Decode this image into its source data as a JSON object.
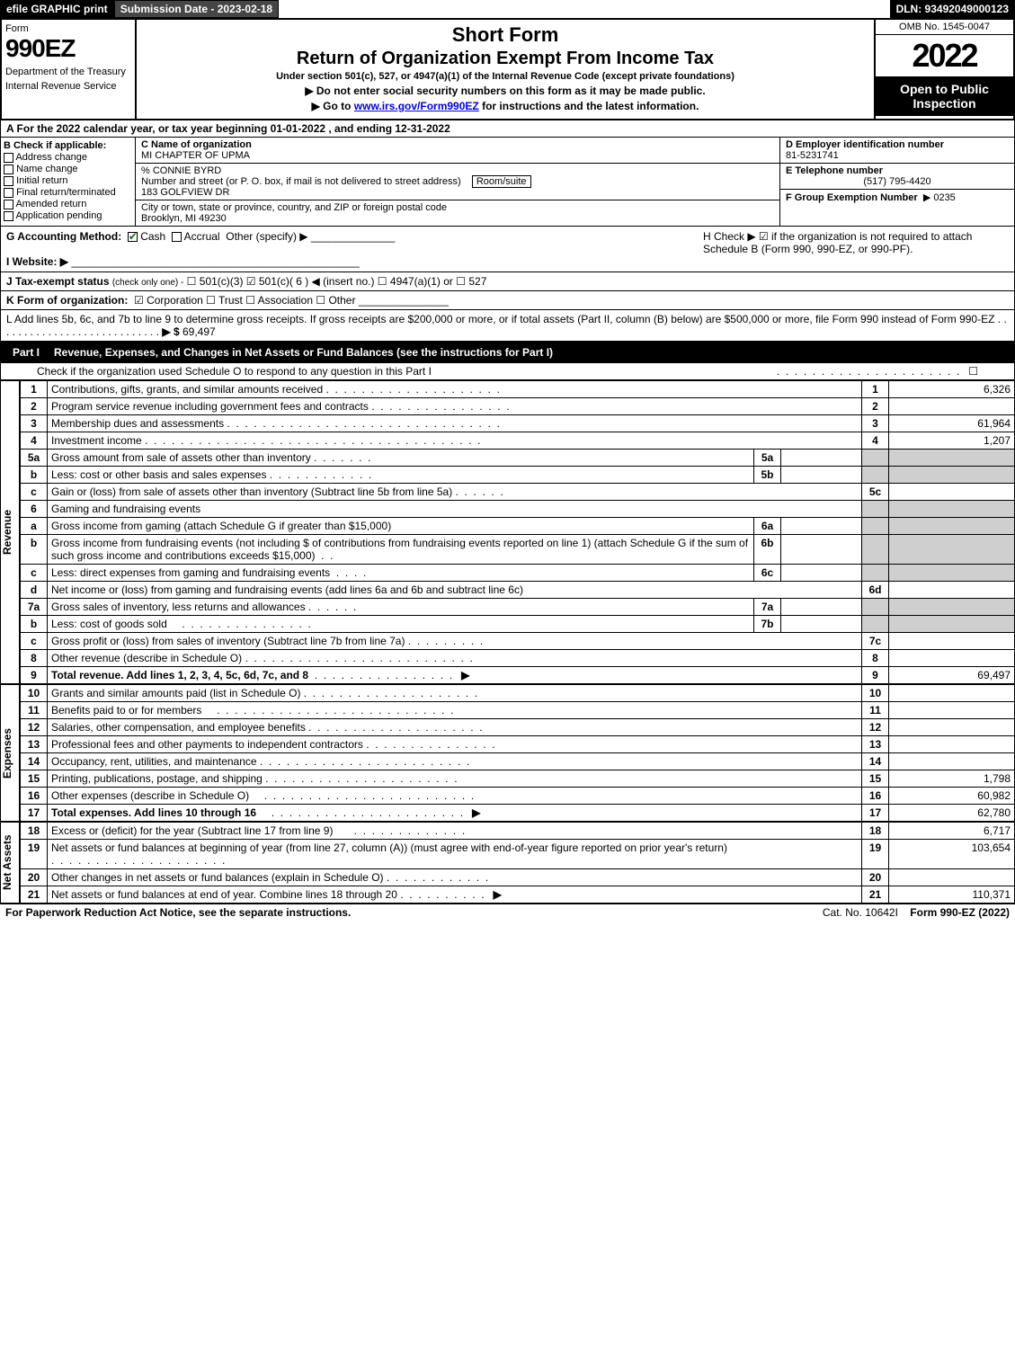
{
  "topbar": {
    "efile": "efile GRAPHIC print",
    "submission": "Submission Date - 2023-02-18",
    "dln": "DLN: 93492049000123"
  },
  "header": {
    "form_label": "Form",
    "form_number": "990EZ",
    "dept1": "Department of the Treasury",
    "dept2": "Internal Revenue Service",
    "short_form": "Short Form",
    "title": "Return of Organization Exempt From Income Tax",
    "subtitle": "Under section 501(c), 527, or 4947(a)(1) of the Internal Revenue Code (except private foundations)",
    "instr1": "▶ Do not enter social security numbers on this form as it may be made public.",
    "instr2_pre": "▶ Go to ",
    "instr2_link": "www.irs.gov/Form990EZ",
    "instr2_post": " for instructions and the latest information.",
    "omb": "OMB No. 1545-0047",
    "year": "2022",
    "open": "Open to Public Inspection"
  },
  "rowA": "A  For the 2022 calendar year, or tax year beginning 01-01-2022  , and ending 12-31-2022",
  "boxB": {
    "label": "B  Check if applicable:",
    "opts": [
      "Address change",
      "Name change",
      "Initial return",
      "Final return/terminated",
      "Amended return",
      "Application pending"
    ]
  },
  "boxC": {
    "name_lbl": "C Name of organization",
    "name": "MI CHAPTER OF UPMA",
    "care_of": "% CONNIE BYRD",
    "street_lbl": "Number and street (or P. O. box, if mail is not delivered to street address)",
    "room_lbl": "Room/suite",
    "street": "183 GOLFVIEW DR",
    "city_lbl": "City or town, state or province, country, and ZIP or foreign postal code",
    "city": "Brooklyn, MI  49230"
  },
  "boxD": {
    "lbl": "D Employer identification number",
    "val": "81-5231741"
  },
  "boxE": {
    "lbl": "E Telephone number",
    "val": "(517) 795-4420"
  },
  "boxF": {
    "lbl": "F Group Exemption Number",
    "val": "▶ 0235"
  },
  "rowG": {
    "lbl": "G Accounting Method:",
    "cash": "Cash",
    "accrual": "Accrual",
    "other": "Other (specify) ▶"
  },
  "rowH": {
    "text": "H  Check ▶ ☑ if the organization is not required to attach Schedule B (Form 990, 990-EZ, or 990-PF)."
  },
  "rowI": {
    "lbl": "I Website: ▶"
  },
  "rowJ": {
    "lbl": "J Tax-exempt status",
    "sub": "(check only one) -",
    "opts": "☐ 501(c)(3)  ☑ 501(c)( 6 ) ◀ (insert no.)  ☐ 4947(a)(1) or  ☐ 527"
  },
  "rowK": {
    "lbl": "K Form of organization:",
    "opts": "☑ Corporation   ☐ Trust   ☐ Association   ☐ Other"
  },
  "rowL": {
    "text": "L Add lines 5b, 6c, and 7b to line 9 to determine gross receipts. If gross receipts are $200,000 or more, or if total assets (Part II, column (B) below) are $500,000 or more, file Form 990 instead of Form 990-EZ",
    "dots": ".  .  .  .  .  .  .  .  .  .  .  .  .  .  .  .  .  .  .  .  .  .  .  .  .  .  .  .",
    "arrow": "▶ $",
    "val": "69,497"
  },
  "part1": {
    "label": "Part I",
    "title": "Revenue, Expenses, and Changes in Net Assets or Fund Balances (see the instructions for Part I)",
    "check_line": "Check if the organization used Schedule O to respond to any question in this Part I",
    "check_val": "☐"
  },
  "revenue_label": "Revenue",
  "expenses_label": "Expenses",
  "netassets_label": "Net Assets",
  "lines": {
    "l1": {
      "n": "1",
      "txt": "Contributions, gifts, grants, and similar amounts received",
      "rn": "1",
      "val": "6,326"
    },
    "l2": {
      "n": "2",
      "txt": "Program service revenue including government fees and contracts",
      "rn": "2",
      "val": ""
    },
    "l3": {
      "n": "3",
      "txt": "Membership dues and assessments",
      "rn": "3",
      "val": "61,964"
    },
    "l4": {
      "n": "4",
      "txt": "Investment income",
      "rn": "4",
      "val": "1,207"
    },
    "l5a": {
      "n": "5a",
      "txt": "Gross amount from sale of assets other than inventory",
      "sub": "5a",
      "subval": ""
    },
    "l5b": {
      "n": "b",
      "txt": "Less: cost or other basis and sales expenses",
      "sub": "5b",
      "subval": ""
    },
    "l5c": {
      "n": "c",
      "txt": "Gain or (loss) from sale of assets other than inventory (Subtract line 5b from line 5a)",
      "rn": "5c",
      "val": ""
    },
    "l6": {
      "n": "6",
      "txt": "Gaming and fundraising events"
    },
    "l6a": {
      "n": "a",
      "txt": "Gross income from gaming (attach Schedule G if greater than $15,000)",
      "sub": "6a",
      "subval": ""
    },
    "l6b": {
      "n": "b",
      "txt": "Gross income from fundraising events (not including $                    of contributions from fundraising events reported on line 1) (attach Schedule G if the sum of such gross income and contributions exceeds $15,000)",
      "sub": "6b",
      "subval": ""
    },
    "l6c": {
      "n": "c",
      "txt": "Less: direct expenses from gaming and fundraising events",
      "sub": "6c",
      "subval": ""
    },
    "l6d": {
      "n": "d",
      "txt": "Net income or (loss) from gaming and fundraising events (add lines 6a and 6b and subtract line 6c)",
      "rn": "6d",
      "val": ""
    },
    "l7a": {
      "n": "7a",
      "txt": "Gross sales of inventory, less returns and allowances",
      "sub": "7a",
      "subval": ""
    },
    "l7b": {
      "n": "b",
      "txt": "Less: cost of goods sold",
      "sub": "7b",
      "subval": ""
    },
    "l7c": {
      "n": "c",
      "txt": "Gross profit or (loss) from sales of inventory (Subtract line 7b from line 7a)",
      "rn": "7c",
      "val": ""
    },
    "l8": {
      "n": "8",
      "txt": "Other revenue (describe in Schedule O)",
      "rn": "8",
      "val": ""
    },
    "l9": {
      "n": "9",
      "txt": "Total revenue. Add lines 1, 2, 3, 4, 5c, 6d, 7c, and 8",
      "arrow": "▶",
      "rn": "9",
      "val": "69,497"
    },
    "l10": {
      "n": "10",
      "txt": "Grants and similar amounts paid (list in Schedule O)",
      "rn": "10",
      "val": ""
    },
    "l11": {
      "n": "11",
      "txt": "Benefits paid to or for members",
      "rn": "11",
      "val": ""
    },
    "l12": {
      "n": "12",
      "txt": "Salaries, other compensation, and employee benefits",
      "rn": "12",
      "val": ""
    },
    "l13": {
      "n": "13",
      "txt": "Professional fees and other payments to independent contractors",
      "rn": "13",
      "val": ""
    },
    "l14": {
      "n": "14",
      "txt": "Occupancy, rent, utilities, and maintenance",
      "rn": "14",
      "val": ""
    },
    "l15": {
      "n": "15",
      "txt": "Printing, publications, postage, and shipping",
      "rn": "15",
      "val": "1,798"
    },
    "l16": {
      "n": "16",
      "txt": "Other expenses (describe in Schedule O)",
      "rn": "16",
      "val": "60,982"
    },
    "l17": {
      "n": "17",
      "txt": "Total expenses. Add lines 10 through 16",
      "arrow": "▶",
      "rn": "17",
      "val": "62,780"
    },
    "l18": {
      "n": "18",
      "txt": "Excess or (deficit) for the year (Subtract line 17 from line 9)",
      "rn": "18",
      "val": "6,717"
    },
    "l19": {
      "n": "19",
      "txt": "Net assets or fund balances at beginning of year (from line 27, column (A)) (must agree with end-of-year figure reported on prior year's return)",
      "rn": "19",
      "val": "103,654"
    },
    "l20": {
      "n": "20",
      "txt": "Other changes in net assets or fund balances (explain in Schedule O)",
      "rn": "20",
      "val": ""
    },
    "l21": {
      "n": "21",
      "txt": "Net assets or fund balances at end of year. Combine lines 18 through 20",
      "arrow": "▶",
      "rn": "21",
      "val": "110,371"
    }
  },
  "footer": {
    "left": "For Paperwork Reduction Act Notice, see the separate instructions.",
    "mid": "Cat. No. 10642I",
    "right": "Form 990-EZ (2022)"
  }
}
